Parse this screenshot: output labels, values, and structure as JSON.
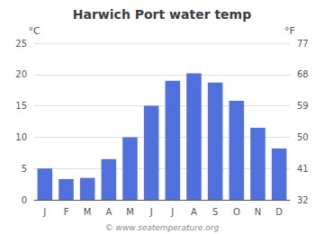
{
  "chart_data": {
    "type": "bar",
    "title": "Harwich Port water temp",
    "categories": [
      "J",
      "F",
      "M",
      "A",
      "M",
      "J",
      "J",
      "A",
      "S",
      "O",
      "N",
      "D"
    ],
    "values": [
      5.0,
      3.3,
      3.5,
      6.5,
      10.0,
      15.0,
      19.0,
      20.2,
      18.7,
      15.8,
      11.5,
      8.2
    ],
    "ylabel": "°C",
    "ylim": [
      0,
      25
    ],
    "yticks": [
      0,
      5,
      10,
      15,
      20,
      25
    ],
    "y2label": "°F",
    "y2lim": [
      32,
      77
    ],
    "y2ticks": [
      32,
      41,
      50,
      59,
      68,
      77
    ],
    "grid": true,
    "annotation": "© www.seatemperature.org"
  }
}
